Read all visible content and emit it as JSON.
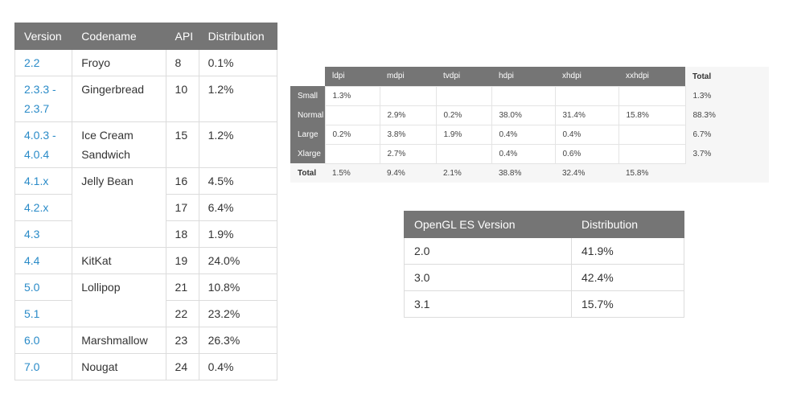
{
  "version_table": {
    "headers": [
      "Version",
      "Codename",
      "API",
      "Distribution"
    ],
    "rows": [
      {
        "version": "2.2",
        "codename": "Froyo",
        "api": "8",
        "distribution": "0.1%"
      },
      {
        "version": "2.3.3 - 2.3.7",
        "codename": "Gingerbread",
        "api": "10",
        "distribution": "1.2%"
      },
      {
        "version": "4.0.3 - 4.0.4",
        "codename": "Ice Cream Sandwich",
        "api": "15",
        "distribution": "1.2%"
      },
      {
        "version": "4.1.x",
        "codename": "Jelly Bean",
        "api": "16",
        "distribution": "4.5%"
      },
      {
        "version": "4.2.x",
        "codename": "",
        "api": "17",
        "distribution": "6.4%"
      },
      {
        "version": "4.3",
        "codename": "",
        "api": "18",
        "distribution": "1.9%"
      },
      {
        "version": "4.4",
        "codename": "KitKat",
        "api": "19",
        "distribution": "24.0%"
      },
      {
        "version": "5.0",
        "codename": "Lollipop",
        "api": "21",
        "distribution": "10.8%"
      },
      {
        "version": "5.1",
        "codename": "",
        "api": "22",
        "distribution": "23.2%"
      },
      {
        "version": "6.0",
        "codename": "Marshmallow",
        "api": "23",
        "distribution": "26.3%"
      },
      {
        "version": "7.0",
        "codename": "Nougat",
        "api": "24",
        "distribution": "0.4%"
      }
    ]
  },
  "density_table": {
    "columns": [
      "ldpi",
      "mdpi",
      "tvdpi",
      "hdpi",
      "xhdpi",
      "xxhdpi"
    ],
    "total_label": "Total",
    "rows": [
      {
        "label": "Small",
        "cells": [
          "1.3%",
          "",
          "",
          "",
          "",
          ""
        ],
        "total": "1.3%"
      },
      {
        "label": "Normal",
        "cells": [
          "",
          "2.9%",
          "0.2%",
          "38.0%",
          "31.4%",
          "15.8%"
        ],
        "total": "88.3%"
      },
      {
        "label": "Large",
        "cells": [
          "0.2%",
          "3.8%",
          "1.9%",
          "0.4%",
          "0.4%",
          ""
        ],
        "total": "6.7%"
      },
      {
        "label": "Xlarge",
        "cells": [
          "",
          "2.7%",
          "",
          "0.4%",
          "0.6%",
          ""
        ],
        "total": "3.7%"
      }
    ],
    "totals": [
      "1.5%",
      "9.4%",
      "2.1%",
      "38.8%",
      "32.4%",
      "15.8%"
    ]
  },
  "opengl_table": {
    "headers": [
      "OpenGL ES Version",
      "Distribution"
    ],
    "rows": [
      {
        "version": "2.0",
        "distribution": "41.9%"
      },
      {
        "version": "3.0",
        "distribution": "42.4%"
      },
      {
        "version": "3.1",
        "distribution": "15.7%"
      }
    ]
  }
}
